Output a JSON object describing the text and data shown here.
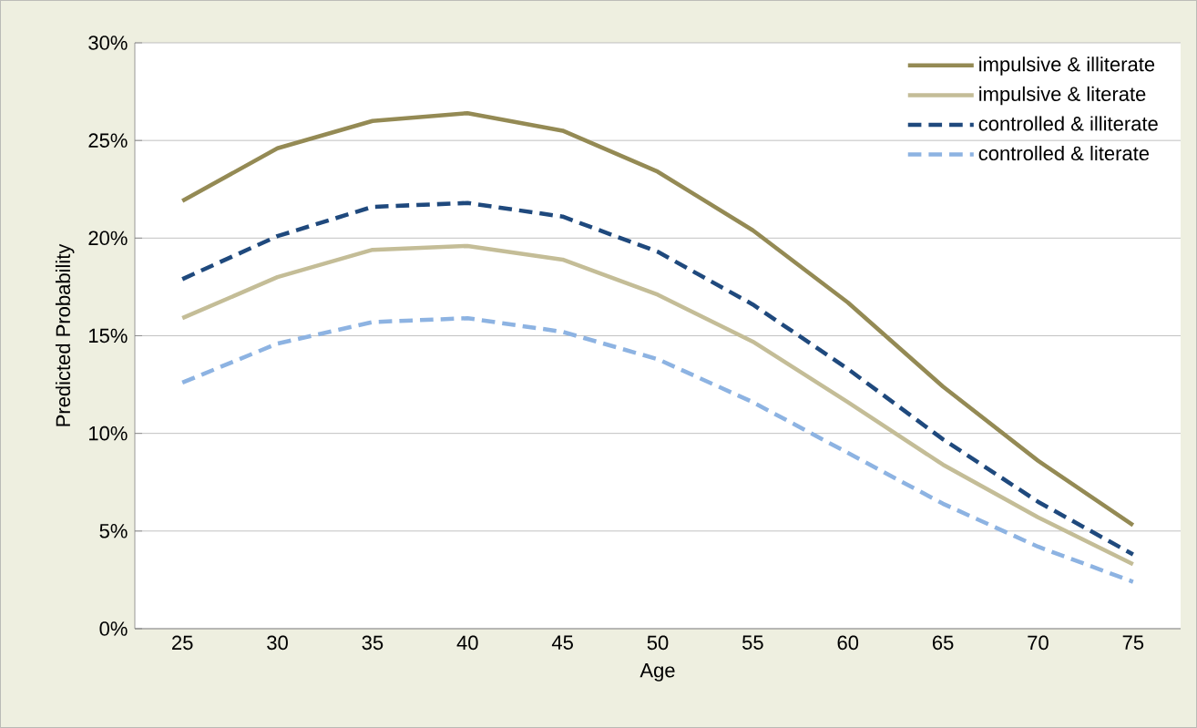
{
  "chart_data": {
    "type": "line",
    "xlabel": "Age",
    "ylabel": "Predicted Probability",
    "categories": [
      "25",
      "30",
      "35",
      "40",
      "45",
      "50",
      "55",
      "60",
      "65",
      "70",
      "75"
    ],
    "series": [
      {
        "name": "impulsive & illiterate",
        "color": "#948a54",
        "line_style": "solid",
        "values": [
          21.9,
          24.6,
          26.0,
          26.4,
          25.5,
          23.4,
          20.4,
          16.7,
          12.4,
          8.6,
          5.3
        ]
      },
      {
        "name": "impulsive & literate",
        "color": "#c4bd97",
        "line_style": "solid",
        "values": [
          15.9,
          18.0,
          19.4,
          19.6,
          18.9,
          17.1,
          14.7,
          11.6,
          8.4,
          5.7,
          3.3
        ]
      },
      {
        "name": "controlled & illiterate",
        "color": "#1f497d",
        "line_style": "dashed",
        "values": [
          17.9,
          20.1,
          21.6,
          21.8,
          21.1,
          19.3,
          16.6,
          13.3,
          9.7,
          6.5,
          3.8
        ]
      },
      {
        "name": "controlled & literate",
        "color": "#8db3e2",
        "line_style": "dashed",
        "values": [
          12.6,
          14.6,
          15.7,
          15.9,
          15.2,
          13.8,
          11.6,
          9.0,
          6.4,
          4.2,
          2.4
        ]
      }
    ],
    "ylim": [
      0,
      30
    ],
    "yticks": [
      {
        "value": 0,
        "label": "0%"
      },
      {
        "value": 5,
        "label": "5%"
      },
      {
        "value": 10,
        "label": "10%"
      },
      {
        "value": 15,
        "label": "15%"
      },
      {
        "value": 20,
        "label": "20%"
      },
      {
        "value": 25,
        "label": "25%"
      },
      {
        "value": 30,
        "label": "30%"
      }
    ],
    "grid": "y",
    "legend": "top right",
    "marker": "none"
  }
}
